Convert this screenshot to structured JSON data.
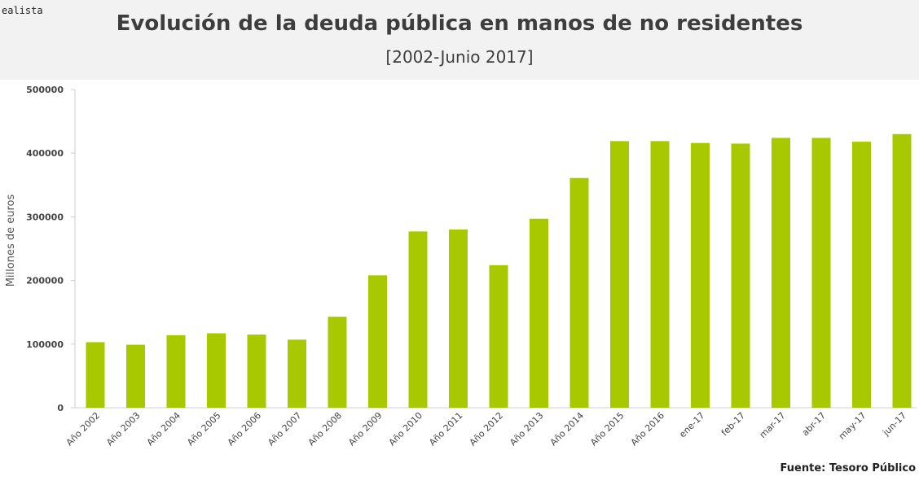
{
  "brand": "ealista",
  "chart_data": {
    "type": "bar",
    "title": "Evolución de la deuda pública en manos de no residentes",
    "subtitle": "[2002-Junio 2017]",
    "xlabel": "",
    "ylabel": "Millones de euros",
    "ylim": [
      0,
      500000
    ],
    "yticks": [
      0,
      100000,
      200000,
      300000,
      400000,
      500000
    ],
    "ytick_labels": [
      "0",
      "100000",
      "200000",
      "300000",
      "400000",
      "500000"
    ],
    "categories": [
      "Año 2002",
      "Año 2003",
      "Año 2004",
      "Año 2005",
      "Año 2006",
      "Año 2007",
      "Año 2008",
      "Año 2009",
      "Año 2010",
      "Año 2011",
      "Año 2012",
      "Año 2013",
      "Año 2014",
      "Año 2015",
      "Año 2016",
      "ene-17",
      "feb-17",
      "mar-17",
      "abr-17",
      "may-17",
      "jun-17"
    ],
    "values": [
      103000,
      99000,
      114000,
      117000,
      115000,
      107000,
      143000,
      208000,
      277000,
      280000,
      224000,
      297000,
      361000,
      419000,
      419000,
      416000,
      415000,
      424000,
      424000,
      418000,
      430000
    ],
    "bar_color": "#a8c800",
    "grid": false
  },
  "source": "Fuente: Tesoro Público"
}
